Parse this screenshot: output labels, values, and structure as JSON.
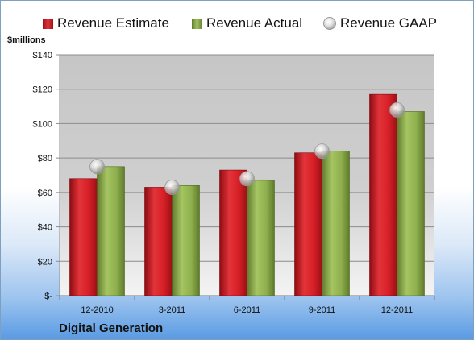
{
  "company": "Digital Generation",
  "colors": {
    "estimate": "#d61f26",
    "actual": "#8fb04e",
    "gaap": "#c8c8c8",
    "plot_background": "#c6c6c6"
  },
  "chart_data": {
    "type": "bar",
    "title": "",
    "xlabel": "",
    "ylabel": "$millions",
    "ylim": [
      0,
      140
    ],
    "yticks": [
      0,
      20,
      40,
      60,
      80,
      100,
      120,
      140
    ],
    "ytick_labels": [
      "$-",
      "$20",
      "$40",
      "$60",
      "$80",
      "$100",
      "$120",
      "$140"
    ],
    "categories": [
      "12-2010",
      "3-2011",
      "6-2011",
      "9-2011",
      "12-2011"
    ],
    "legend_position": "top",
    "grid": true,
    "series": [
      {
        "name": "Revenue Estimate",
        "type": "bar",
        "values": [
          68,
          63,
          73,
          83,
          117
        ]
      },
      {
        "name": "Revenue Actual",
        "type": "bar",
        "values": [
          75,
          64,
          67,
          84,
          107
        ]
      },
      {
        "name": "Revenue GAAP",
        "type": "scatter",
        "values": [
          75,
          63,
          68,
          84,
          108
        ]
      }
    ]
  }
}
